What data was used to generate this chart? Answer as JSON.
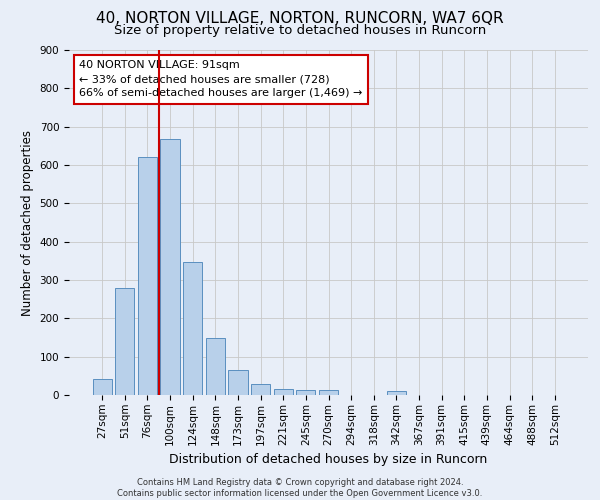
{
  "title": "40, NORTON VILLAGE, NORTON, RUNCORN, WA7 6QR",
  "subtitle": "Size of property relative to detached houses in Runcorn",
  "xlabel": "Distribution of detached houses by size in Runcorn",
  "ylabel": "Number of detached properties",
  "footer_line1": "Contains HM Land Registry data © Crown copyright and database right 2024.",
  "footer_line2": "Contains public sector information licensed under the Open Government Licence v3.0.",
  "categories": [
    "27sqm",
    "51sqm",
    "76sqm",
    "100sqm",
    "124sqm",
    "148sqm",
    "173sqm",
    "197sqm",
    "221sqm",
    "245sqm",
    "270sqm",
    "294sqm",
    "318sqm",
    "342sqm",
    "367sqm",
    "391sqm",
    "415sqm",
    "439sqm",
    "464sqm",
    "488sqm",
    "512sqm"
  ],
  "bar_values": [
    42,
    278,
    621,
    667,
    347,
    148,
    66,
    30,
    15,
    12,
    12,
    0,
    0,
    10,
    0,
    0,
    0,
    0,
    0,
    0,
    0
  ],
  "bar_color": "#b8d0ea",
  "bar_edge_color": "#5a8fc0",
  "vline_x": 2.5,
  "vline_color": "#cc0000",
  "annotation_text": "40 NORTON VILLAGE: 91sqm\n← 33% of detached houses are smaller (728)\n66% of semi-detached houses are larger (1,469) →",
  "annotation_box_color": "#ffffff",
  "annotation_box_edge_color": "#cc0000",
  "ylim": [
    0,
    900
  ],
  "yticks": [
    0,
    100,
    200,
    300,
    400,
    500,
    600,
    700,
    800,
    900
  ],
  "grid_color": "#c8c8c8",
  "background_color": "#e8eef8",
  "plot_background_color": "#e8eef8",
  "title_fontsize": 11,
  "subtitle_fontsize": 9.5,
  "xlabel_fontsize": 9,
  "ylabel_fontsize": 8.5,
  "tick_fontsize": 7.5,
  "annotation_fontsize": 8,
  "footer_fontsize": 6
}
